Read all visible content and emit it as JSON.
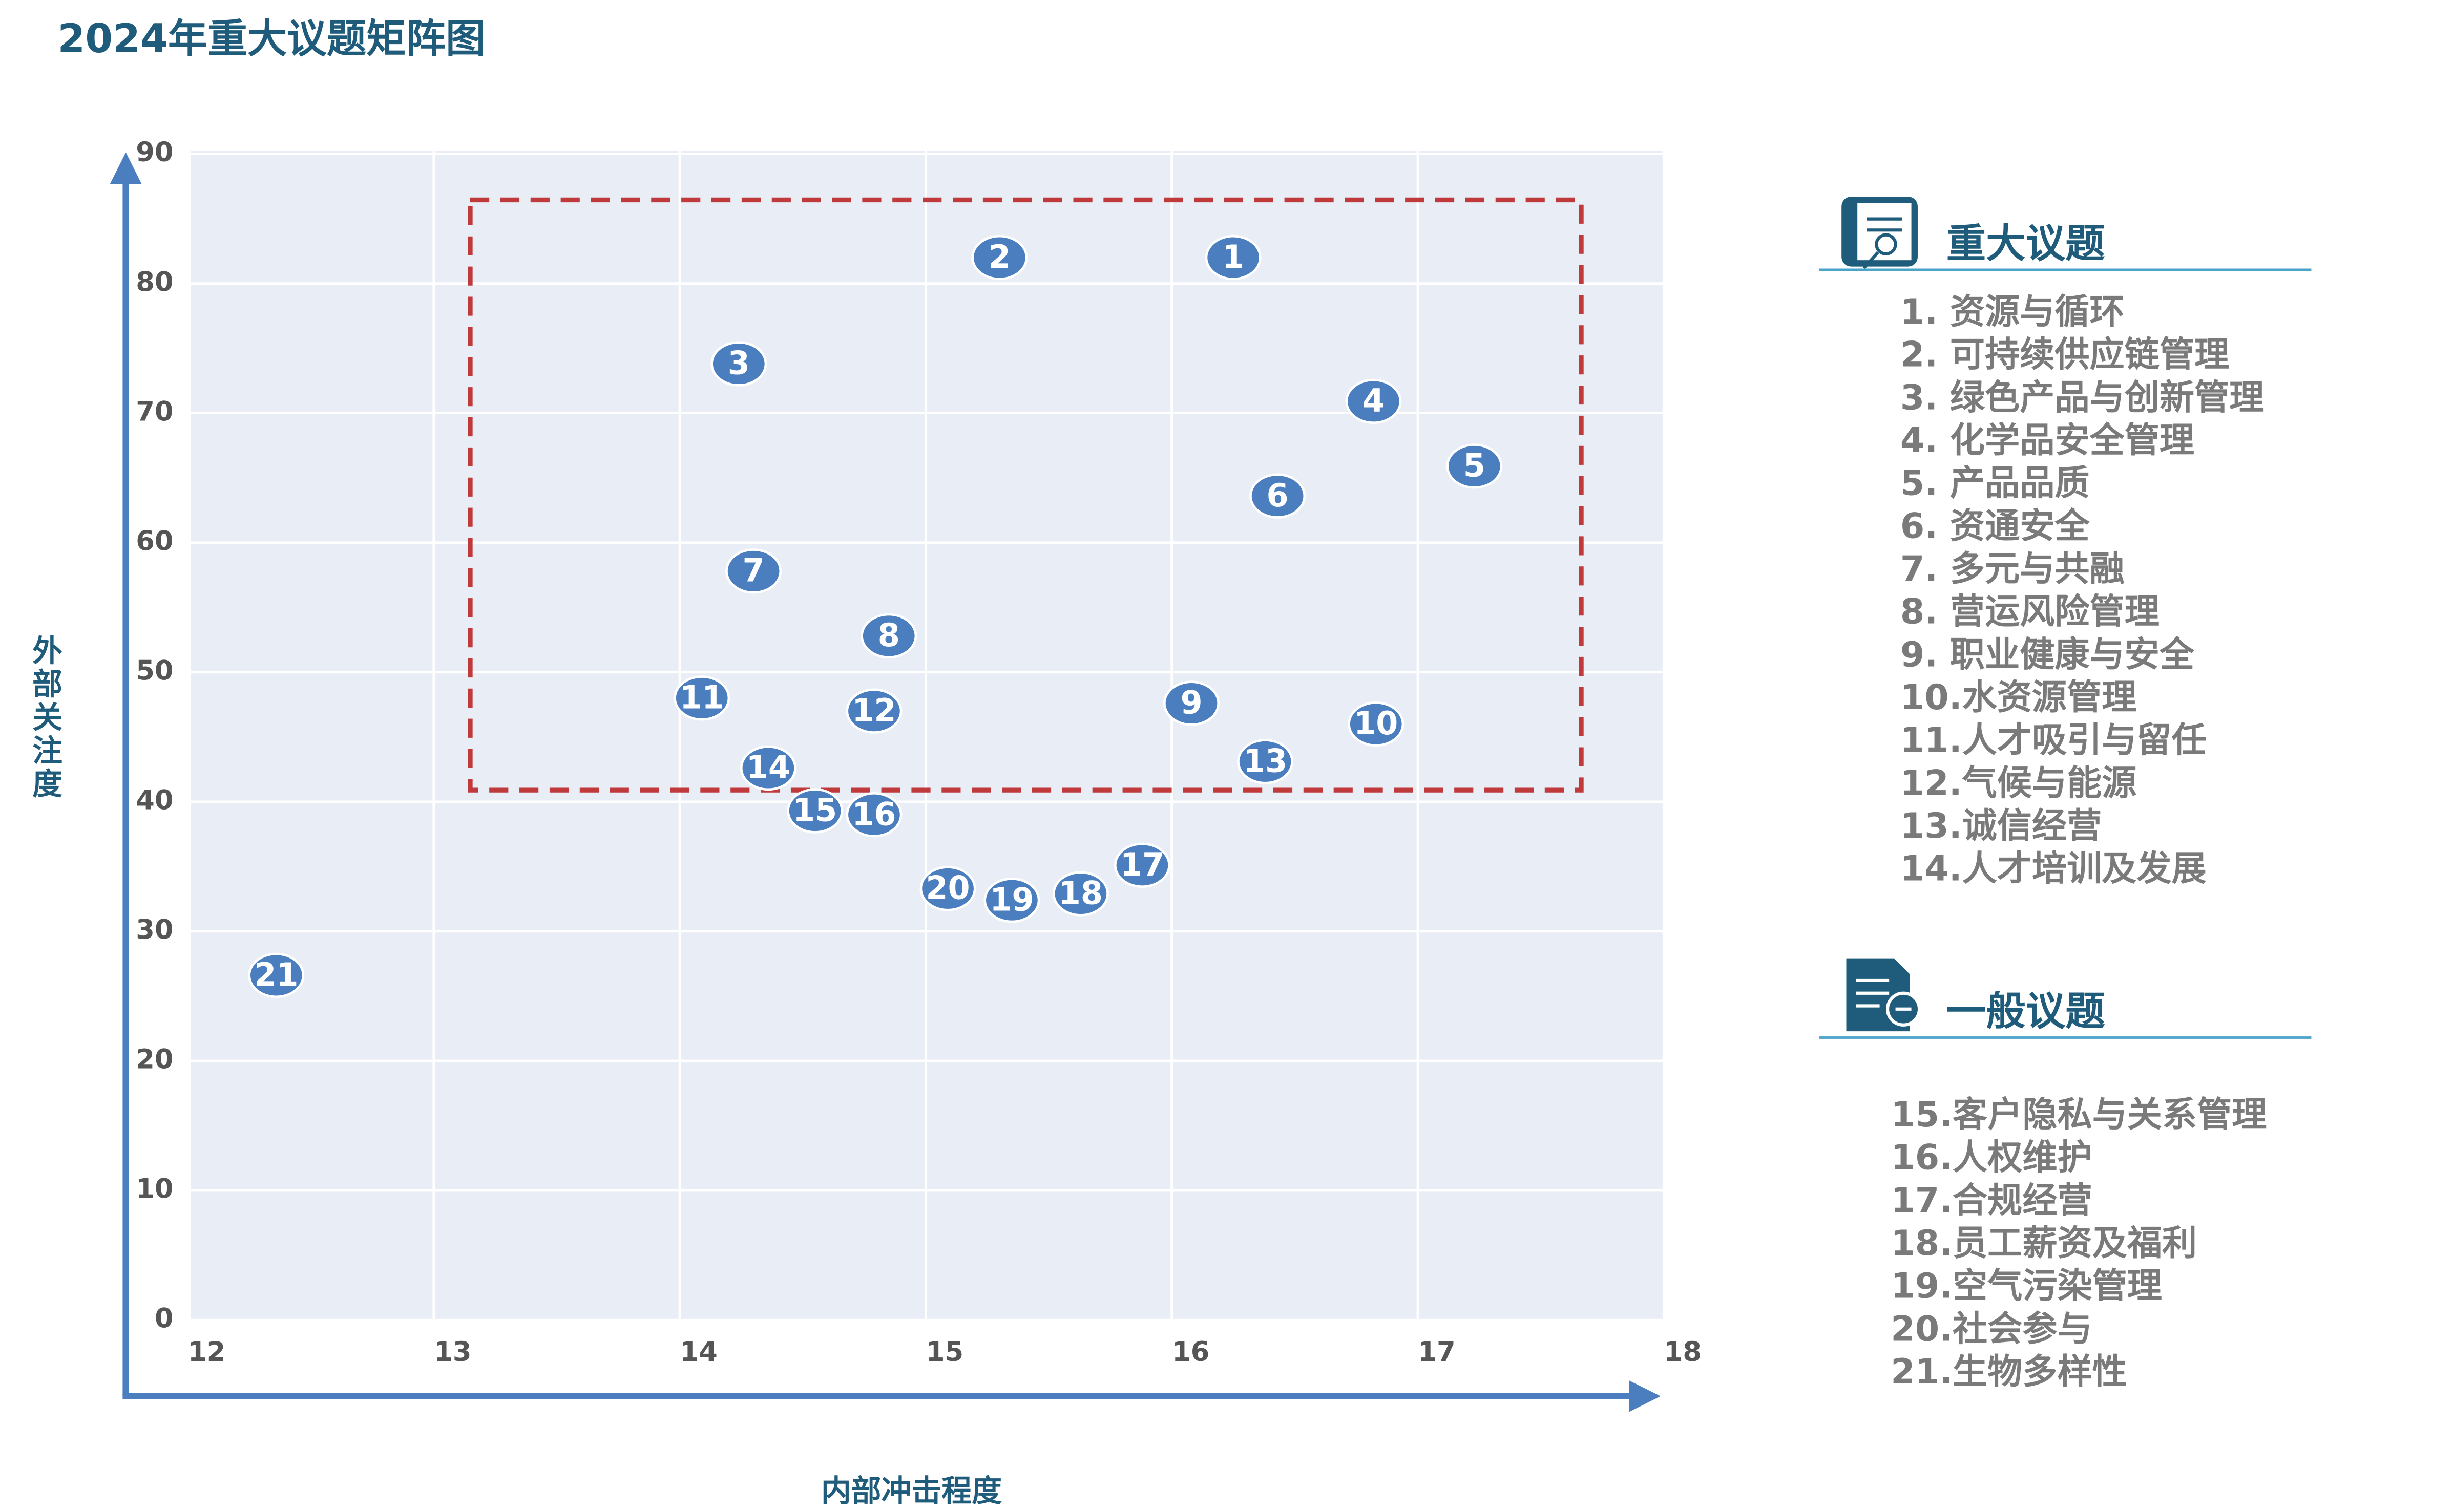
{
  "chart_data": {
    "type": "scatter",
    "title": "2024年重大议题矩阵图",
    "x_label": "内部冲击程度",
    "y_label": "外部关注度",
    "labels": [
      "1",
      "2",
      "3",
      "4",
      "5",
      "6",
      "7",
      "8",
      "9",
      "10",
      "11",
      "12",
      "13",
      "14",
      "15",
      "16",
      "17",
      "18",
      "19",
      "20",
      "21"
    ],
    "x": [
      16.25,
      15.3,
      14.24,
      16.82,
      17.23,
      16.43,
      14.3,
      14.85,
      16.08,
      16.83,
      14.09,
      14.79,
      16.38,
      14.36,
      14.55,
      14.79,
      15.88,
      15.63,
      15.35,
      15.09,
      12.36
    ],
    "y": [
      82,
      82,
      73.8,
      70.9,
      65.9,
      63.6,
      57.8,
      52.8,
      47.6,
      46,
      48,
      47,
      43.1,
      42.6,
      39.3,
      39,
      35.1,
      32.9,
      32.4,
      33.3,
      26.6
    ],
    "color": "#4a7ebf",
    "xlim": [
      12,
      18
    ],
    "xticks": [
      12,
      13,
      14,
      15,
      16,
      17,
      18
    ],
    "ylim": [
      0,
      90
    ],
    "yticks": [
      0,
      10,
      20,
      30,
      40,
      50,
      60,
      70,
      80,
      90
    ],
    "grid": true,
    "legend_groups": [
      {
        "title": "重大议题",
        "items": [
          "1. 资源与循环",
          "2. 可持续供应链管理",
          "3. 绿色产品与创新管理",
          "4. 化学品安全管理",
          "5. 产品品质",
          "6. 资通安全",
          "7. 多元与共融",
          "8. 营运风险管理",
          "9. 职业健康与安全",
          "10.水资源管理",
          "11.人才吸引与留任",
          "12.气候与能源",
          "13.诚信经营",
          "14.人才培训及发展"
        ]
      },
      {
        "title": "一般议题",
        "items": [
          "15.客户隐私与关系管理",
          "16.人权维护",
          "17.合规经营",
          "18.员工薪资及福利",
          "19.空气污染管理",
          "20.社会参与",
          "21.生物多样性"
        ]
      }
    ]
  }
}
